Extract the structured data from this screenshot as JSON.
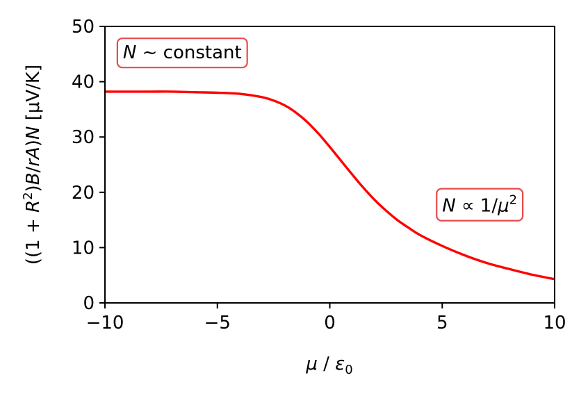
{
  "chart_data": {
    "type": "line",
    "xlabel": "μ / ε₀",
    "ylabel": "((1 + R²)B/rA)N [μV/K]",
    "xlim": [
      -10,
      10
    ],
    "ylim": [
      0,
      50
    ],
    "xticks": [
      -10,
      -5,
      0,
      5,
      10
    ],
    "xtick_labels": [
      "−10",
      "−5",
      "0",
      "5",
      "10"
    ],
    "yticks": [
      0,
      10,
      20,
      30,
      40,
      50
    ],
    "ytick_labels": [
      "0",
      "10",
      "20",
      "30",
      "40",
      "50"
    ],
    "grid": false,
    "series": [
      {
        "color": "#ff0000",
        "x": [
          -10,
          -9,
          -8,
          -7,
          -6,
          -5,
          -4,
          -3,
          -2.5,
          -2,
          -1.5,
          -1,
          -0.5,
          0,
          0.5,
          1,
          1.5,
          2,
          2.5,
          3,
          3.5,
          4,
          5,
          6,
          7,
          8,
          9,
          10
        ],
        "y": [
          38.2,
          38.2,
          38.2,
          38.2,
          38.1,
          38.0,
          37.8,
          37.2,
          36.6,
          35.7,
          34.4,
          32.7,
          30.6,
          28.2,
          25.7,
          23.2,
          20.8,
          18.6,
          16.7,
          15.0,
          13.6,
          12.3,
          10.3,
          8.6,
          7.2,
          6.1,
          5.1,
          4.3
        ]
      }
    ],
    "annotations": [
      {
        "id": "constant",
        "text_prefix": "N",
        "text_rest": " ~ constant",
        "border_color": "#e84a4a",
        "x": -9.2,
        "y": 44.2
      },
      {
        "id": "inverse",
        "text_prefix": "N",
        "text_mid": " ∝ 1/",
        "text_mu": "μ",
        "text_exp": "2",
        "border_color": "#e84a4a",
        "x": 5.0,
        "y": 16.5
      }
    ]
  }
}
